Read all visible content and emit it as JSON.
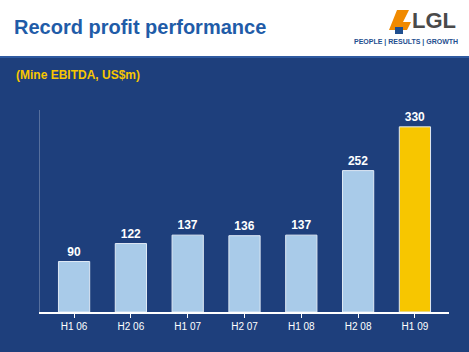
{
  "chart_data": {
    "type": "bar",
    "title": "Record profit performance",
    "subtitle": "(Mine EBITDA, US$m)",
    "annotations": [
      {
        "text": "LGL"
      },
      {
        "text": "PEOPLE | RESULTS | GROWTH"
      }
    ],
    "categories": [
      "H1 06",
      "H2 06",
      "H1 07",
      "H2 07",
      "H1 08",
      "H2 08",
      "H1 09"
    ],
    "values": [
      90,
      122,
      137,
      136,
      137,
      252,
      330
    ],
    "colors": [
      "#a9cbe9",
      "#a9cbe9",
      "#a9cbe9",
      "#a9cbe9",
      "#a9cbe9",
      "#a9cbe9",
      "#f7c600"
    ],
    "ylim": [
      0,
      360
    ],
    "grid": false,
    "data_labels": true,
    "tick_labels": "x",
    "legend": "none"
  }
}
